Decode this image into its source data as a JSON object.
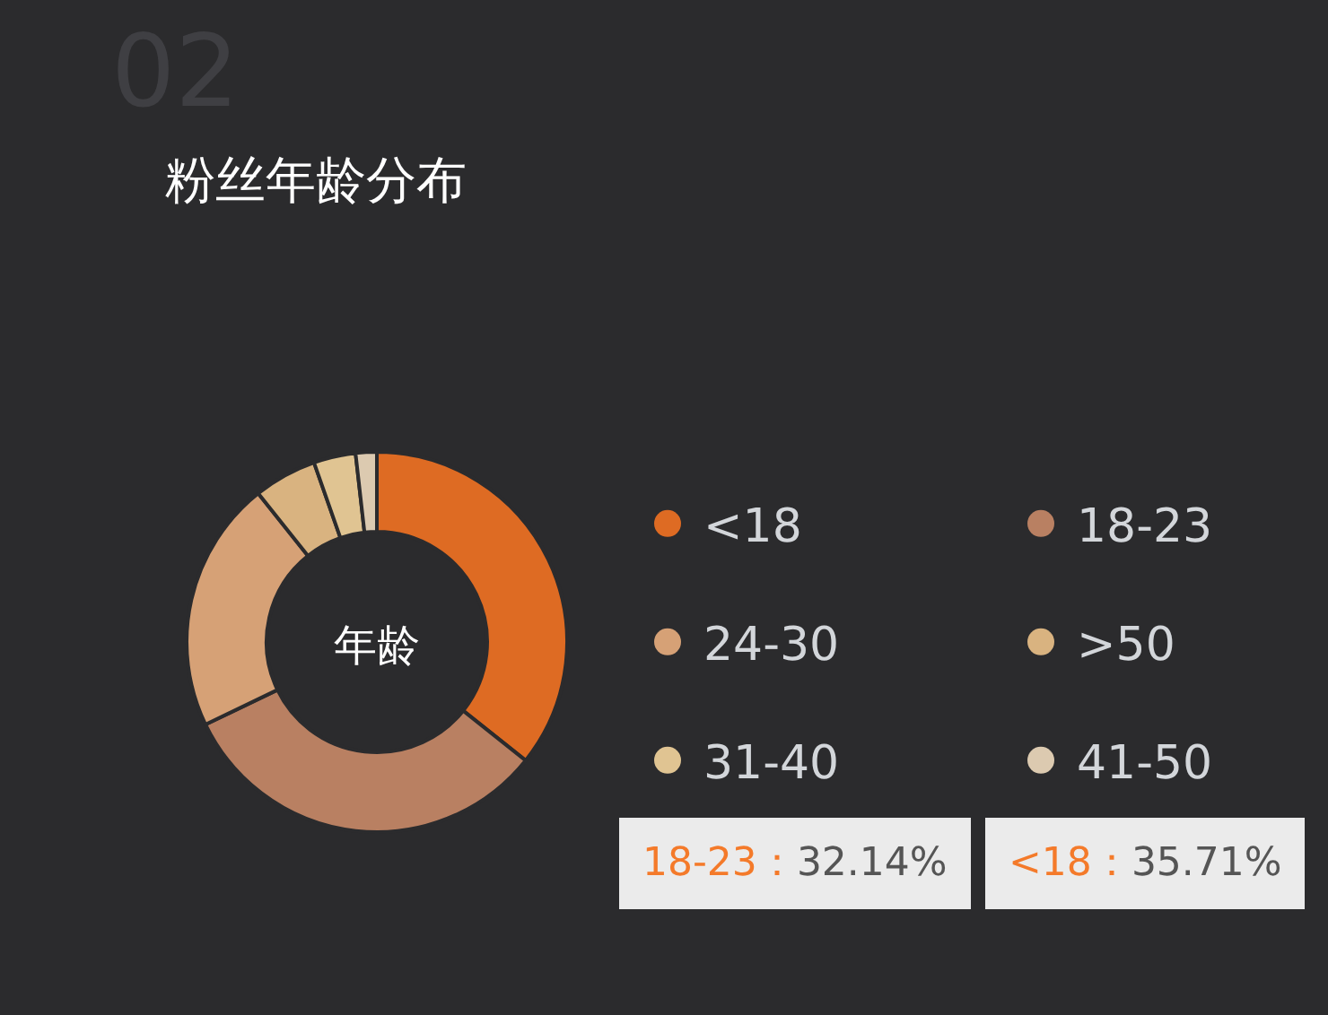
{
  "chart_data": {
    "type": "donut",
    "title": "粉丝年龄分布",
    "categories": [
      "<18",
      "18-23",
      "24-30",
      ">50",
      "31-40",
      "41-50"
    ],
    "series": [
      {
        "name": "年龄",
        "values": [
          35.71,
          32.14,
          21.43,
          5.36,
          3.57,
          1.79
        ]
      }
    ],
    "colors": [
      "#de6b23",
      "#b98062",
      "#d6a176",
      "#d9b380",
      "#e0c492",
      "#dccab0"
    ],
    "legend": "right",
    "annotations": [
      "02",
      "18-23：32.14%",
      "<18：35.71%"
    ]
  }
}
